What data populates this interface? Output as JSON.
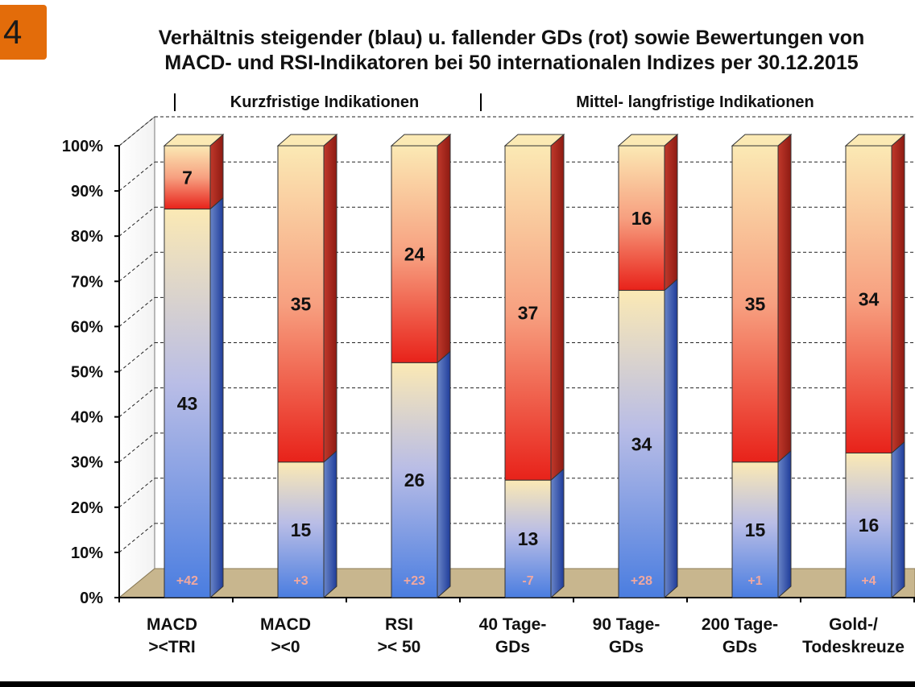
{
  "slide_number": "4",
  "colors": {
    "badge": "#e36c0a",
    "rising": "#4a7de0",
    "falling": "#e8221a",
    "neutral": "#fbe9b4",
    "floor": "#c8b68e"
  },
  "chart_data": {
    "type": "bar",
    "stacked": true,
    "percent_scale": true,
    "title_lines": [
      "Verhältnis steigender (blau) u. fallender GDs (rot) sowie Bewertungen von",
      "MACD- und RSI-Indikatoren bei 50 internationalen Indizes per 30.12.2015"
    ],
    "section_labels": [
      "Kurzfristige Indikationen",
      "Mittel- langfristige Indikationen"
    ],
    "categories": [
      [
        "MACD",
        "><TRI"
      ],
      [
        "MACD",
        "><0"
      ],
      [
        "RSI",
        ">< 50"
      ],
      [
        "40 Tage-",
        "GDs"
      ],
      [
        "90 Tage-",
        "GDs"
      ],
      [
        "200 Tage-",
        "GDs"
      ],
      [
        "Gold-/",
        "Todeskreuze"
      ]
    ],
    "series": [
      {
        "values": [
          43,
          15,
          26,
          13,
          34,
          15,
          16
        ]
      },
      {
        "values": [
          7,
          35,
          24,
          37,
          16,
          35,
          34
        ]
      }
    ],
    "net": [
      "+42",
      "+3",
      "+23",
      "-7",
      "+28",
      "+1",
      "+4"
    ],
    "yticks": [
      "0%",
      "10%",
      "20%",
      "30%",
      "40%",
      "50%",
      "60%",
      "70%",
      "80%",
      "90%",
      "100%"
    ],
    "ylim": [
      0,
      100
    ],
    "total": 50,
    "grid": true,
    "legend": "none"
  }
}
